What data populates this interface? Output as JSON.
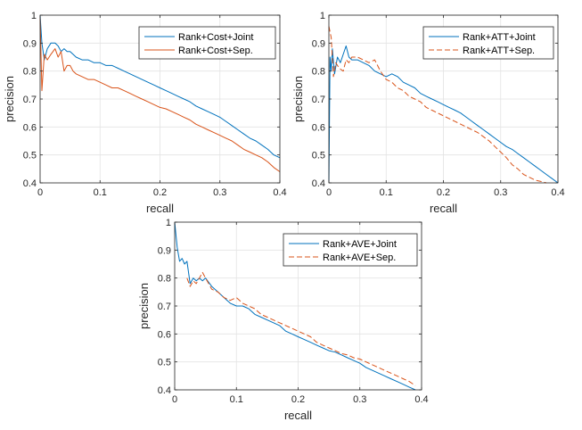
{
  "chart_data": [
    {
      "type": "line",
      "xlabel": "recall",
      "ylabel": "precision",
      "xlim": [
        0,
        0.4
      ],
      "ylim": [
        0.4,
        1
      ],
      "xticks": [
        "0",
        "0.1",
        "0.2",
        "0.3",
        "0.4"
      ],
      "yticks": [
        "0.4",
        "0.5",
        "0.6",
        "0.7",
        "0.8",
        "0.9",
        "1"
      ],
      "grid": true,
      "legend_position": "top-right",
      "series": [
        {
          "name": "Rank+Cost+Joint",
          "color": "#0072BD",
          "dash": "solid",
          "x": [
            0,
            0.003,
            0.007,
            0.012,
            0.018,
            0.025,
            0.03,
            0.035,
            0.04,
            0.045,
            0.05,
            0.055,
            0.06,
            0.07,
            0.08,
            0.09,
            0.1,
            0.11,
            0.12,
            0.13,
            0.14,
            0.15,
            0.16,
            0.17,
            0.18,
            0.19,
            0.2,
            0.21,
            0.22,
            0.23,
            0.24,
            0.25,
            0.26,
            0.27,
            0.28,
            0.29,
            0.3,
            0.31,
            0.32,
            0.33,
            0.34,
            0.35,
            0.36,
            0.37,
            0.38,
            0.39,
            0.4
          ],
          "y": [
            1.0,
            0.9,
            0.84,
            0.88,
            0.9,
            0.9,
            0.89,
            0.87,
            0.88,
            0.87,
            0.87,
            0.86,
            0.85,
            0.84,
            0.84,
            0.83,
            0.83,
            0.82,
            0.82,
            0.81,
            0.8,
            0.79,
            0.78,
            0.77,
            0.76,
            0.75,
            0.74,
            0.73,
            0.72,
            0.71,
            0.7,
            0.69,
            0.675,
            0.665,
            0.655,
            0.645,
            0.635,
            0.62,
            0.605,
            0.59,
            0.575,
            0.56,
            0.55,
            0.535,
            0.52,
            0.5,
            0.49
          ]
        },
        {
          "name": "Rank+Cost+Sep.",
          "color": "#D95319",
          "dash": "solid",
          "x": [
            0,
            0.003,
            0.007,
            0.012,
            0.018,
            0.025,
            0.03,
            0.035,
            0.04,
            0.045,
            0.05,
            0.055,
            0.06,
            0.07,
            0.08,
            0.09,
            0.1,
            0.11,
            0.12,
            0.13,
            0.14,
            0.15,
            0.16,
            0.17,
            0.18,
            0.19,
            0.2,
            0.21,
            0.22,
            0.23,
            0.24,
            0.25,
            0.26,
            0.27,
            0.28,
            0.29,
            0.3,
            0.31,
            0.32,
            0.33,
            0.34,
            0.35,
            0.36,
            0.37,
            0.38,
            0.39,
            0.4
          ],
          "y": [
            0.99,
            0.73,
            0.86,
            0.84,
            0.86,
            0.88,
            0.85,
            0.87,
            0.8,
            0.82,
            0.82,
            0.8,
            0.79,
            0.78,
            0.77,
            0.77,
            0.76,
            0.75,
            0.74,
            0.74,
            0.73,
            0.72,
            0.71,
            0.7,
            0.69,
            0.68,
            0.67,
            0.665,
            0.655,
            0.645,
            0.635,
            0.625,
            0.61,
            0.6,
            0.59,
            0.58,
            0.57,
            0.56,
            0.55,
            0.535,
            0.52,
            0.51,
            0.5,
            0.49,
            0.475,
            0.455,
            0.44
          ]
        }
      ]
    },
    {
      "type": "line",
      "xlabel": "recall",
      "ylabel": "precision",
      "xlim": [
        0,
        0.4
      ],
      "ylim": [
        0.4,
        1
      ],
      "xticks": [
        "0",
        "0.1",
        "0.2",
        "0.3",
        "0.4"
      ],
      "yticks": [
        "0.4",
        "0.5",
        "0.6",
        "0.7",
        "0.8",
        "0.9",
        "1"
      ],
      "grid": true,
      "legend_position": "top-right",
      "series": [
        {
          "name": "Rank+ATT+Joint",
          "color": "#0072BD",
          "dash": "solid",
          "x": [
            0,
            0.002,
            0.004,
            0.006,
            0.01,
            0.015,
            0.02,
            0.025,
            0.03,
            0.035,
            0.04,
            0.05,
            0.06,
            0.07,
            0.08,
            0.09,
            0.1,
            0.11,
            0.12,
            0.13,
            0.14,
            0.15,
            0.16,
            0.17,
            0.18,
            0.19,
            0.2,
            0.21,
            0.22,
            0.23,
            0.24,
            0.25,
            0.26,
            0.27,
            0.28,
            0.29,
            0.3,
            0.31,
            0.32,
            0.33,
            0.34,
            0.35,
            0.36,
            0.37,
            0.38,
            0.39,
            0.4
          ],
          "y": [
            0.4,
            0.85,
            0.8,
            0.88,
            0.79,
            0.85,
            0.83,
            0.86,
            0.89,
            0.85,
            0.84,
            0.84,
            0.83,
            0.82,
            0.8,
            0.79,
            0.78,
            0.79,
            0.78,
            0.76,
            0.75,
            0.74,
            0.72,
            0.71,
            0.7,
            0.69,
            0.68,
            0.67,
            0.66,
            0.65,
            0.635,
            0.62,
            0.605,
            0.59,
            0.575,
            0.56,
            0.545,
            0.53,
            0.52,
            0.505,
            0.49,
            0.475,
            0.46,
            0.445,
            0.43,
            0.415,
            0.4
          ]
        },
        {
          "name": "Rank+ATT+Sep.",
          "color": "#D95319",
          "dash": "dashed",
          "x": [
            0,
            0.004,
            0.008,
            0.012,
            0.018,
            0.025,
            0.03,
            0.035,
            0.04,
            0.05,
            0.06,
            0.07,
            0.08,
            0.09,
            0.1,
            0.11,
            0.12,
            0.13,
            0.14,
            0.15,
            0.16,
            0.17,
            0.18,
            0.19,
            0.2,
            0.21,
            0.22,
            0.23,
            0.24,
            0.25,
            0.26,
            0.27,
            0.28,
            0.29,
            0.3,
            0.31,
            0.32,
            0.33,
            0.34,
            0.35,
            0.36,
            0.37,
            0.38
          ],
          "y": [
            0.96,
            0.92,
            0.78,
            0.83,
            0.81,
            0.8,
            0.84,
            0.83,
            0.85,
            0.85,
            0.84,
            0.83,
            0.84,
            0.8,
            0.77,
            0.76,
            0.74,
            0.73,
            0.71,
            0.7,
            0.69,
            0.67,
            0.66,
            0.65,
            0.64,
            0.63,
            0.62,
            0.61,
            0.6,
            0.59,
            0.58,
            0.565,
            0.55,
            0.53,
            0.51,
            0.49,
            0.465,
            0.45,
            0.43,
            0.42,
            0.41,
            0.405,
            0.4
          ]
        }
      ]
    },
    {
      "type": "line",
      "xlabel": "recall",
      "ylabel": "precision",
      "xlim": [
        0,
        0.4
      ],
      "ylim": [
        0.4,
        1
      ],
      "xticks": [
        "0",
        "0.1",
        "0.2",
        "0.3",
        "0.4"
      ],
      "yticks": [
        "0.4",
        "0.5",
        "0.6",
        "0.7",
        "0.8",
        "0.9",
        "1"
      ],
      "grid": true,
      "legend_position": "top-right",
      "series": [
        {
          "name": "Rank+AVE+Joint",
          "color": "#0072BD",
          "dash": "solid",
          "x": [
            0,
            0.004,
            0.008,
            0.012,
            0.016,
            0.02,
            0.025,
            0.03,
            0.035,
            0.04,
            0.045,
            0.05,
            0.06,
            0.07,
            0.08,
            0.09,
            0.1,
            0.11,
            0.12,
            0.13,
            0.14,
            0.15,
            0.16,
            0.17,
            0.18,
            0.19,
            0.2,
            0.21,
            0.22,
            0.23,
            0.24,
            0.25,
            0.26,
            0.27,
            0.28,
            0.29,
            0.3,
            0.31,
            0.32,
            0.33,
            0.34,
            0.35,
            0.36,
            0.37,
            0.38,
            0.39
          ],
          "y": [
            1.0,
            0.91,
            0.86,
            0.87,
            0.85,
            0.86,
            0.78,
            0.8,
            0.79,
            0.8,
            0.79,
            0.8,
            0.77,
            0.75,
            0.73,
            0.71,
            0.7,
            0.7,
            0.69,
            0.67,
            0.66,
            0.65,
            0.64,
            0.63,
            0.61,
            0.6,
            0.59,
            0.58,
            0.57,
            0.56,
            0.55,
            0.54,
            0.535,
            0.525,
            0.515,
            0.505,
            0.495,
            0.48,
            0.47,
            0.46,
            0.45,
            0.44,
            0.43,
            0.42,
            0.41,
            0.4
          ]
        },
        {
          "name": "Rank+AVE+Sep.",
          "color": "#D95319",
          "dash": "dashed",
          "x": [
            0.02,
            0.025,
            0.03,
            0.035,
            0.04,
            0.045,
            0.05,
            0.055,
            0.06,
            0.07,
            0.08,
            0.09,
            0.1,
            0.11,
            0.12,
            0.13,
            0.14,
            0.15,
            0.16,
            0.17,
            0.18,
            0.19,
            0.2,
            0.21,
            0.22,
            0.23,
            0.24,
            0.25,
            0.26,
            0.27,
            0.28,
            0.29,
            0.3,
            0.31,
            0.32,
            0.33,
            0.34,
            0.35,
            0.36,
            0.37,
            0.38,
            0.39
          ],
          "y": [
            0.8,
            0.77,
            0.79,
            0.78,
            0.8,
            0.82,
            0.8,
            0.78,
            0.76,
            0.75,
            0.73,
            0.72,
            0.73,
            0.71,
            0.7,
            0.69,
            0.67,
            0.66,
            0.65,
            0.64,
            0.63,
            0.62,
            0.61,
            0.6,
            0.59,
            0.57,
            0.56,
            0.55,
            0.54,
            0.53,
            0.525,
            0.515,
            0.51,
            0.5,
            0.49,
            0.48,
            0.47,
            0.46,
            0.45,
            0.44,
            0.43,
            0.415
          ]
        }
      ]
    }
  ]
}
